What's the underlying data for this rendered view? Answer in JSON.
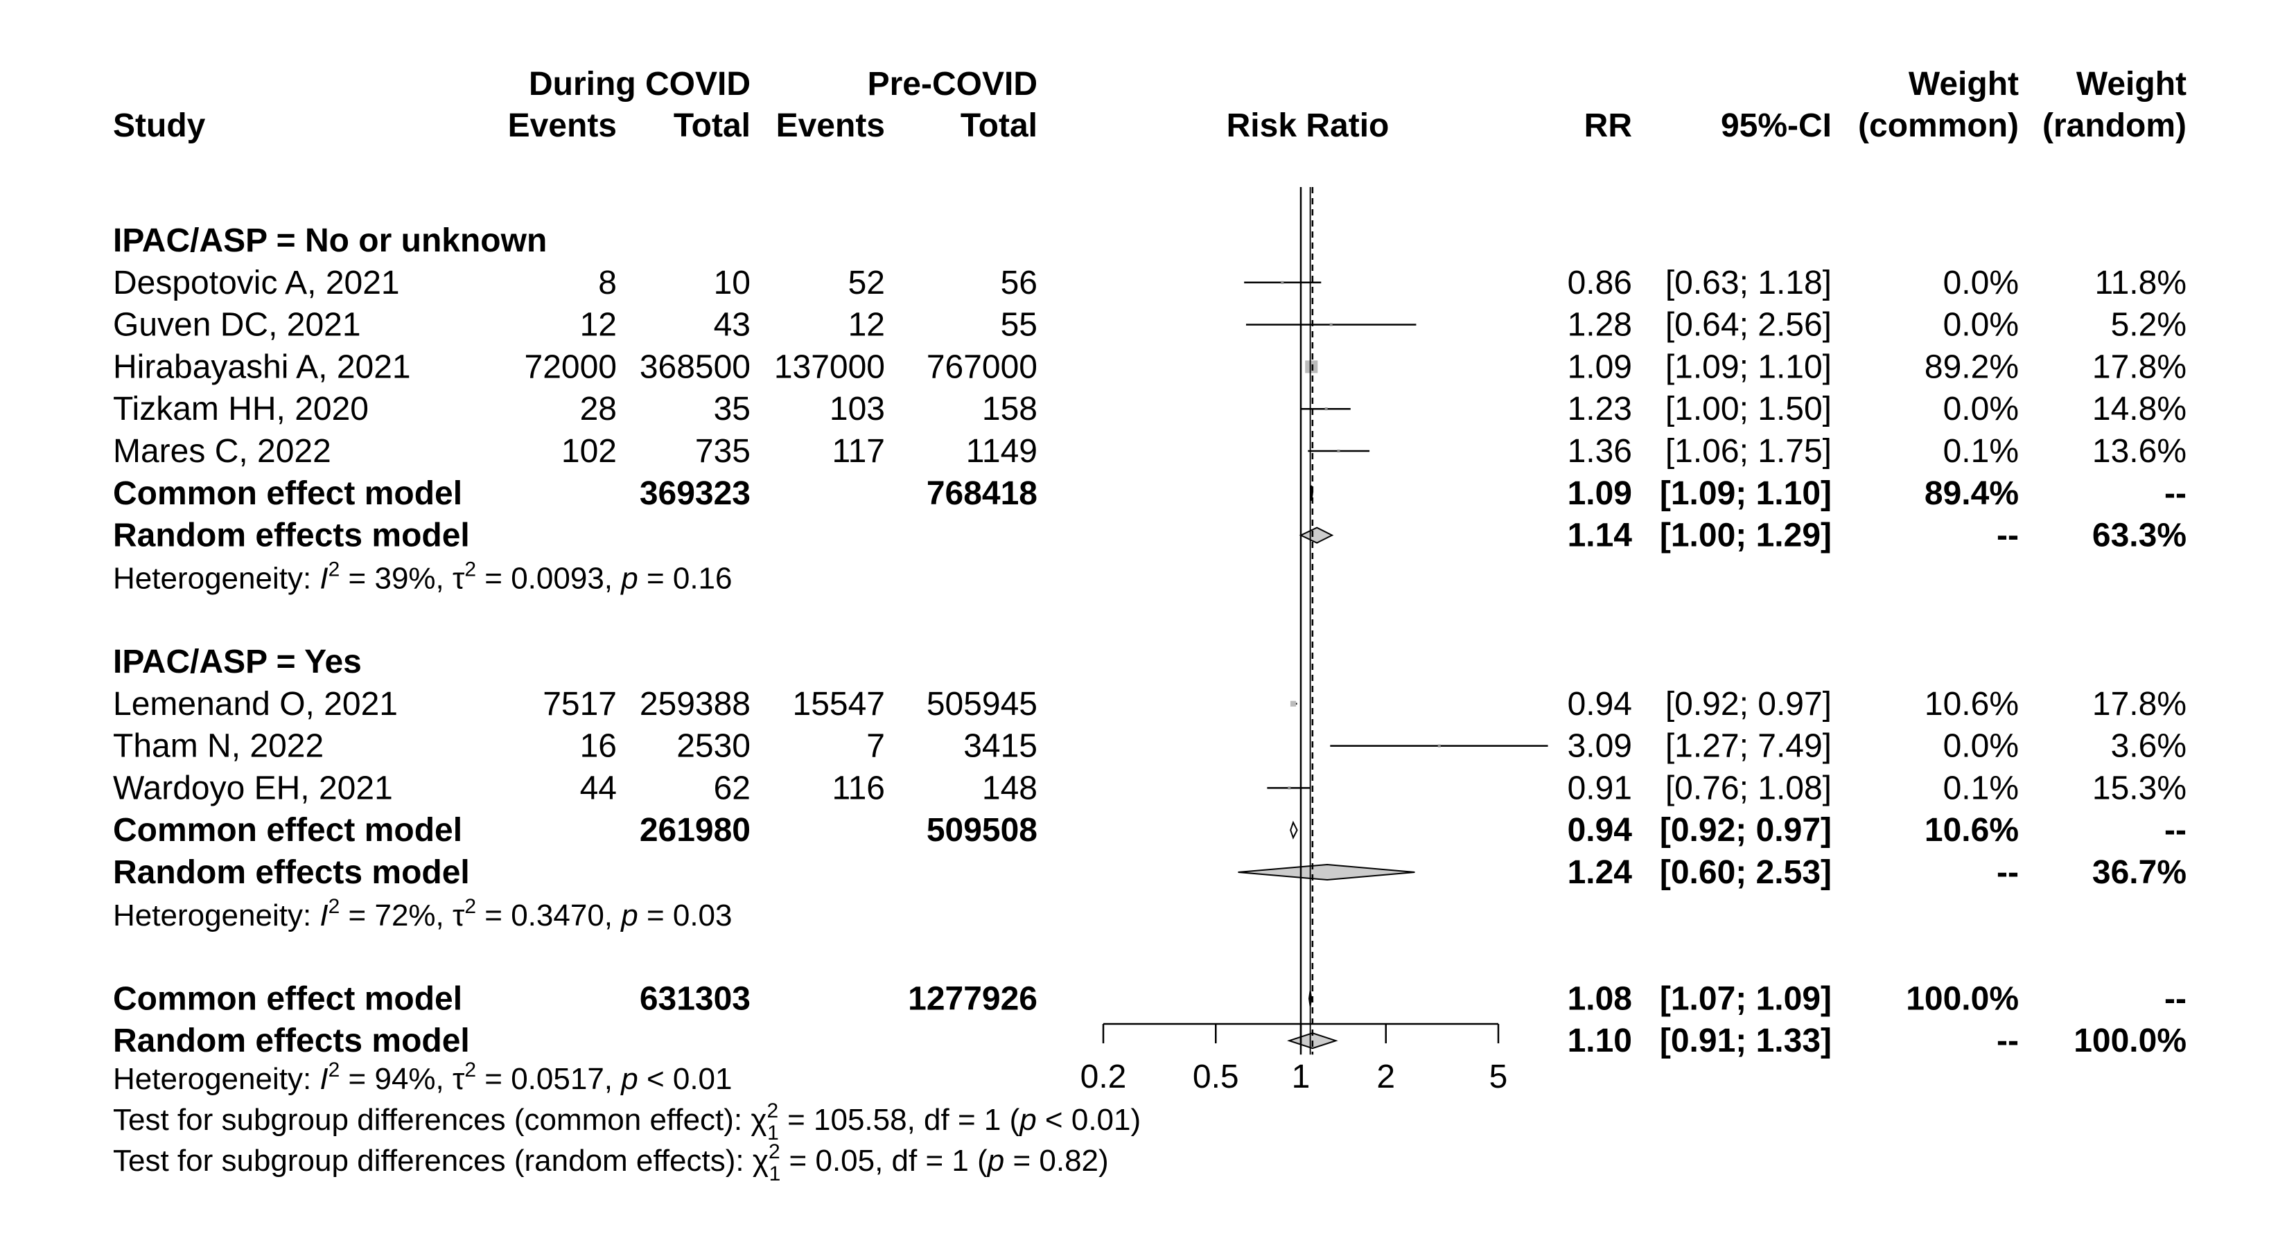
{
  "chart_data": {
    "type": "forest",
    "xlabel": "Risk Ratio",
    "x_scale": "log",
    "x_ticks": [
      "0.2",
      "0.5",
      "1",
      "2",
      "5"
    ],
    "x_tick_values": [
      0.2,
      0.5,
      1,
      2,
      5
    ],
    "xlim": [
      0.2,
      5
    ],
    "reference_line": 1,
    "common_effect_line": 1.08,
    "random_effects_line": 1.1,
    "headers": {
      "group_during": "During COVID",
      "group_pre": "Pre-COVID",
      "study": "Study",
      "events": "Events",
      "total": "Total",
      "rr": "RR",
      "ci": "95%-CI",
      "weight": "Weight",
      "weight_common": "(common)",
      "weight_random": "(random)"
    },
    "subgroups": [
      {
        "label": "IPAC/ASP = No or unknown",
        "studies": [
          {
            "study": "Despotovic A, 2021",
            "ev_d": "8",
            "tot_d": "10",
            "ev_p": "52",
            "tot_p": "56",
            "rr": 0.86,
            "lo": 0.63,
            "hi": 1.18,
            "rr_txt": "0.86",
            "ci_txt": "[0.63; 1.18]",
            "w_common": "0.0%",
            "w_random": "11.8%",
            "w": 0.0,
            "color": "#888888"
          },
          {
            "study": "Guven DC, 2021",
            "ev_d": "12",
            "tot_d": "43",
            "ev_p": "12",
            "tot_p": "55",
            "rr": 1.28,
            "lo": 0.64,
            "hi": 2.56,
            "rr_txt": "1.28",
            "ci_txt": "[0.64; 2.56]",
            "w_common": "0.0%",
            "w_random": "5.2%",
            "w": 0.0,
            "color": "#888888"
          },
          {
            "study": "Hirabayashi A, 2021",
            "ev_d": "72000",
            "tot_d": "368500",
            "ev_p": "137000",
            "tot_p": "767000",
            "rr": 1.09,
            "lo": 1.09,
            "hi": 1.1,
            "rr_txt": "1.09",
            "ci_txt": "[1.09; 1.10]",
            "w_common": "89.2%",
            "w_random": "17.8%",
            "w": 89.2,
            "color": "#bbbbbb"
          },
          {
            "study": "Tizkam HH, 2020",
            "ev_d": "28",
            "tot_d": "35",
            "ev_p": "103",
            "tot_p": "158",
            "rr": 1.23,
            "lo": 1.0,
            "hi": 1.5,
            "rr_txt": "1.23",
            "ci_txt": "[1.00; 1.50]",
            "w_common": "0.0%",
            "w_random": "14.8%",
            "w": 0.0,
            "color": "#888888"
          },
          {
            "study": "Mares C, 2022",
            "ev_d": "102",
            "tot_d": "735",
            "ev_p": "117",
            "tot_p": "1149",
            "rr": 1.36,
            "lo": 1.06,
            "hi": 1.75,
            "rr_txt": "1.36",
            "ci_txt": "[1.06; 1.75]",
            "w_common": "0.1%",
            "w_random": "13.6%",
            "w": 0.1,
            "color": "#888888"
          }
        ],
        "common": {
          "label": "Common effect model",
          "tot_d": "369323",
          "tot_p": "768418",
          "rr": 1.09,
          "lo": 1.09,
          "hi": 1.1,
          "rr_txt": "1.09",
          "ci_txt": "[1.09; 1.10]",
          "w_common": "89.4%",
          "w_random": "--"
        },
        "random": {
          "label": "Random effects model",
          "rr": 1.14,
          "lo": 1.0,
          "hi": 1.29,
          "rr_txt": "1.14",
          "ci_txt": "[1.00; 1.29]",
          "w_common": "--",
          "w_random": "63.3%"
        },
        "heterogeneity": {
          "prefix": "Heterogeneity: ",
          "i2": "39%",
          "tau2": "0.0093",
          "p": "0.16",
          "p_op": "="
        }
      },
      {
        "label": "IPAC/ASP = Yes",
        "studies": [
          {
            "study": "Lemenand O, 2021",
            "ev_d": "7517",
            "tot_d": "259388",
            "ev_p": "15547",
            "tot_p": "505945",
            "rr": 0.94,
            "lo": 0.92,
            "hi": 0.97,
            "rr_txt": "0.94",
            "ci_txt": "[0.92; 0.97]",
            "w_common": "10.6%",
            "w_random": "17.8%",
            "w": 10.6,
            "color": "#bbbbbb"
          },
          {
            "study": "Tham N, 2022",
            "ev_d": "16",
            "tot_d": "2530",
            "ev_p": "7",
            "tot_p": "3415",
            "rr": 3.09,
            "lo": 1.27,
            "hi": 7.49,
            "rr_txt": "3.09",
            "ci_txt": "[1.27; 7.49]",
            "w_common": "0.0%",
            "w_random": "3.6%",
            "w": 0.0,
            "color": "#888888",
            "arrow_right": true
          },
          {
            "study": "Wardoyo EH, 2021",
            "ev_d": "44",
            "tot_d": "62",
            "ev_p": "116",
            "tot_p": "148",
            "rr": 0.91,
            "lo": 0.76,
            "hi": 1.08,
            "rr_txt": "0.91",
            "ci_txt": "[0.76; 1.08]",
            "w_common": "0.1%",
            "w_random": "15.3%",
            "w": 0.1,
            "color": "#888888"
          }
        ],
        "common": {
          "label": "Common effect model",
          "tot_d": "261980",
          "tot_p": "509508",
          "rr": 0.94,
          "lo": 0.92,
          "hi": 0.97,
          "rr_txt": "0.94",
          "ci_txt": "[0.92; 0.97]",
          "w_common": "10.6%",
          "w_random": "--"
        },
        "random": {
          "label": "Random effects model",
          "rr": 1.24,
          "lo": 0.6,
          "hi": 2.53,
          "rr_txt": "1.24",
          "ci_txt": "[0.60; 2.53]",
          "w_common": "--",
          "w_random": "36.7%"
        },
        "heterogeneity": {
          "prefix": "Heterogeneity: ",
          "i2": "72%",
          "tau2": "0.3470",
          "p": "0.03",
          "p_op": "="
        }
      }
    ],
    "overall": {
      "common": {
        "label": "Common effect model",
        "tot_d": "631303",
        "tot_p": "1277926",
        "rr": 1.08,
        "lo": 1.07,
        "hi": 1.09,
        "rr_txt": "1.08",
        "ci_txt": "[1.07; 1.09]",
        "w_common": "100.0%",
        "w_random": "--"
      },
      "random": {
        "label": "Random effects model",
        "rr": 1.1,
        "lo": 0.91,
        "hi": 1.33,
        "rr_txt": "1.10",
        "ci_txt": "[0.91; 1.33]",
        "w_common": "--",
        "w_random": "100.0%"
      },
      "heterogeneity": {
        "prefix": "Heterogeneity: ",
        "i2": "94%",
        "tau2": "0.0517",
        "p": "0.01",
        "p_op": "<"
      }
    },
    "subgroup_tests": [
      {
        "prefix": "Test for subgroup differences (common effect): ",
        "chi2": "105.58",
        "df": "1",
        "p": "< 0.01"
      },
      {
        "prefix": "Test for subgroup differences (random effects): ",
        "chi2": "0.05",
        "df": "1",
        "p": "= 0.82"
      }
    ]
  }
}
